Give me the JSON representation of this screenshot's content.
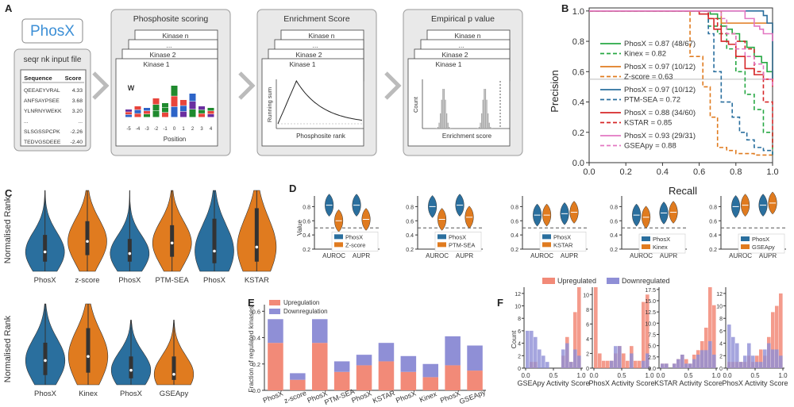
{
  "panel_labels": {
    "a": "A",
    "b": "B",
    "c": "C",
    "d": "D",
    "e": "E",
    "f": "F"
  },
  "colors": {
    "blue": "#2a6f9e",
    "orange": "#e07b1f",
    "green": "#27a844",
    "red": "#d62728",
    "pink": "#e377c2",
    "salmon": "#f28a78",
    "lavender": "#8f8fd6",
    "gray": "#777777"
  },
  "panel_a": {
    "logo": "PhosX",
    "input_title": "seqr nk input file",
    "table_headers": [
      "Sequence",
      "Score"
    ],
    "table_rows": [
      [
        "QEEAEYVRAL",
        "4.33"
      ],
      [
        "ANFSAYPSEE",
        "3.68"
      ],
      [
        "YLNRNYWEKK",
        "3.20"
      ],
      [
        "...",
        "..."
      ],
      [
        "SLSGSSPCPK",
        "-2.26"
      ],
      [
        "TEDVGSDEEE",
        "-2.40"
      ]
    ],
    "steps": [
      {
        "title": "Phosphosite scoring",
        "cards": [
          "Kinase n",
          "...",
          "Kinase 2",
          "Kinase 1"
        ],
        "xlabel": "Position",
        "ticks": [
          "-5",
          "-4",
          "-3",
          "-2",
          "-1",
          "0",
          "1",
          "2",
          "3",
          "4"
        ]
      },
      {
        "title": "Enrichment Score",
        "cards": [
          "Kinase n",
          "...",
          "Kinase 2",
          "Kinase 1"
        ],
        "xlabel": "Phosphosite rank",
        "ylabel": "Running sum"
      },
      {
        "title": "Empirical p value",
        "cards": [
          "Kinase n",
          "...",
          "Kinase 2",
          "Kinase 1"
        ],
        "xlabel": "Enrichment score",
        "ylabel": "Count"
      }
    ]
  },
  "chart_data": [
    {
      "id": "B",
      "type": "line",
      "xlabel": "Recall",
      "ylabel": "Precision",
      "xlim": [
        0,
        1
      ],
      "ylim": [
        0,
        1.02
      ],
      "xticks": [
        "0.0",
        "0.2",
        "0.4",
        "0.6",
        "0.8",
        "1.0"
      ],
      "yticks": [
        "0.0",
        "0.2",
        "0.4",
        "0.6",
        "0.8",
        "1.0"
      ],
      "series": [
        {
          "name": "PhosX = 0.87 (48/67)",
          "color": "green",
          "dash": false,
          "x": [
            0,
            0.6,
            0.66,
            0.7,
            0.72,
            0.75,
            0.78,
            0.82,
            0.86,
            0.9,
            0.94,
            0.97,
            1.0
          ],
          "y": [
            1,
            1,
            0.98,
            0.95,
            0.9,
            0.88,
            0.85,
            0.8,
            0.76,
            0.7,
            0.66,
            0.6,
            0.55
          ]
        },
        {
          "name": "Kinex = 0.82",
          "color": "green",
          "dash": true,
          "x": [
            0,
            0.6,
            0.65,
            0.7,
            0.75,
            0.8,
            0.85,
            0.9,
            0.95,
            1.0
          ],
          "y": [
            1,
            1,
            0.9,
            0.85,
            0.75,
            0.6,
            0.45,
            0.35,
            0.2,
            0.05
          ]
        },
        {
          "name": "PhosX = 0.97 (10/12)",
          "color": "orange",
          "dash": false,
          "x": [
            0,
            0.7,
            0.72,
            1.0,
            1.0
          ],
          "y": [
            1,
            1,
            0.92,
            0.92,
            0.55
          ]
        },
        {
          "name": "Z-score = 0.63",
          "color": "orange",
          "dash": true,
          "x": [
            0,
            0.5,
            0.55,
            0.62,
            0.66,
            0.7,
            0.75,
            0.8,
            0.9,
            1.0
          ],
          "y": [
            1,
            1,
            0.7,
            0.5,
            0.3,
            0.1,
            0.08,
            0.06,
            0.05,
            0.04
          ]
        },
        {
          "name": "PhosX = 0.97 (10/12)",
          "color": "blue",
          "dash": false,
          "x": [
            0,
            0.9,
            0.95,
            0.97,
            1.0,
            1.0
          ],
          "y": [
            1,
            1,
            0.97,
            0.92,
            0.9,
            0.55
          ]
        },
        {
          "name": "PTM-SEA = 0.72",
          "color": "blue",
          "dash": true,
          "x": [
            0,
            0.6,
            0.65,
            0.68,
            0.72,
            0.78,
            0.82,
            0.86,
            0.9,
            0.95,
            1.0
          ],
          "y": [
            1,
            1,
            0.85,
            0.6,
            0.4,
            0.3,
            0.2,
            0.15,
            0.1,
            0.08,
            0.05
          ]
        },
        {
          "name": "PhosX = 0.88 (34/60)",
          "color": "red",
          "dash": false,
          "x": [
            0,
            0.5,
            0.6,
            0.65,
            0.68,
            0.72,
            0.76,
            0.8,
            0.85,
            0.9,
            0.95,
            1.0
          ],
          "y": [
            1,
            1,
            0.98,
            0.95,
            0.88,
            0.8,
            0.78,
            0.7,
            0.62,
            0.58,
            0.55,
            0.5
          ]
        },
        {
          "name": "KSTAR = 0.85",
          "color": "red",
          "dash": true,
          "x": [
            0,
            0.6,
            0.65,
            0.7,
            0.72,
            0.8,
            0.85,
            0.9,
            0.95,
            1.0
          ],
          "y": [
            1,
            1,
            0.95,
            0.9,
            0.85,
            0.8,
            0.75,
            0.6,
            0.4,
            0.1
          ]
        },
        {
          "name": "PhosX = 0.93 (29/31)",
          "color": "pink",
          "dash": false,
          "x": [
            0,
            0.8,
            0.85,
            0.9,
            0.93,
            0.95,
            1.0
          ],
          "y": [
            1,
            1,
            0.95,
            0.9,
            0.88,
            0.85,
            0.8
          ]
        },
        {
          "name": "GSEApy = 0.88",
          "color": "pink",
          "dash": true,
          "x": [
            0,
            0.7,
            0.72,
            0.75,
            0.8,
            0.85,
            0.9,
            0.95,
            1.0
          ],
          "y": [
            1,
            1,
            0.95,
            0.85,
            0.75,
            0.7,
            0.65,
            0.55,
            0.5
          ]
        }
      ],
      "hline": 0.55
    },
    {
      "id": "C",
      "type": "violin",
      "ylabel": "Normalised Rank",
      "rows": [
        {
          "categories": [
            "PhosX",
            "z-score",
            "PhosX",
            "PTM-SEA",
            "PhosX",
            "KSTAR"
          ],
          "colors": [
            "blue",
            "orange",
            "blue",
            "orange",
            "blue",
            "orange"
          ],
          "medians": [
            0.24,
            0.37,
            0.22,
            0.35,
            0.25,
            0.3
          ],
          "q1": [
            0.12,
            0.2,
            0.12,
            0.18,
            0.1,
            0.12
          ],
          "q3": [
            0.45,
            0.62,
            0.4,
            0.57,
            0.65,
            0.78
          ],
          "max": [
            1,
            1,
            1,
            1,
            1,
            1
          ],
          "min": [
            0,
            0,
            0,
            0,
            0,
            0
          ]
        },
        {
          "categories": [
            "PhosX",
            "Kinex",
            "PhosX",
            "GSEApy"
          ],
          "colors": [
            "blue",
            "orange",
            "blue",
            "orange"
          ],
          "medians": [
            0.3,
            0.35,
            0.18,
            0.13
          ],
          "q1": [
            0.12,
            0.15,
            0.08,
            0.06
          ],
          "q3": [
            0.52,
            0.7,
            0.35,
            0.35
          ],
          "max": [
            1,
            1,
            0.8,
            0.8
          ],
          "min": [
            0,
            0,
            0,
            0
          ]
        }
      ]
    },
    {
      "id": "D",
      "type": "violin",
      "ylabel": "Value",
      "yticks": [
        "0.2",
        "0.4",
        "0.6",
        "0.8"
      ],
      "categories": [
        "AUROC",
        "AUPR"
      ],
      "subplots": [
        {
          "legend": [
            "PhosX",
            "Z-score"
          ],
          "values": [
            [
              0.82,
              0.6
            ],
            [
              0.82,
              0.62
            ]
          ]
        },
        {
          "legend": [
            "PhosX",
            "PTM-SEA"
          ],
          "values": [
            [
              0.8,
              0.62
            ],
            [
              0.82,
              0.65
            ]
          ]
        },
        {
          "legend": [
            "PhosX",
            "KSTAR"
          ],
          "values": [
            [
              0.68,
              0.68
            ],
            [
              0.7,
              0.72
            ]
          ]
        },
        {
          "legend": [
            "PhosX",
            "Kinex"
          ],
          "values": [
            [
              0.68,
              0.65
            ],
            [
              0.71,
              0.72
            ]
          ]
        },
        {
          "legend": [
            "PhosX",
            "GSEApy"
          ],
          "values": [
            [
              0.8,
              0.82
            ],
            [
              0.82,
              0.85
            ]
          ]
        }
      ],
      "baseline": 0.5
    },
    {
      "id": "E",
      "type": "bar",
      "ylabel": "Fraction of regulated kinases",
      "yticks": [
        "0.0",
        "0.2",
        "0.4",
        "0.6"
      ],
      "ylim": [
        0,
        0.65
      ],
      "categories": [
        "PhosX",
        "z-score",
        "PhosX",
        "PTM-SEA",
        "PhosX",
        "KSTAR",
        "PhosX",
        "Kinex",
        "PhosX",
        "GSEApy"
      ],
      "series": [
        {
          "name": "Upregulation",
          "color": "salmon",
          "values": [
            0.36,
            0.08,
            0.36,
            0.14,
            0.19,
            0.22,
            0.14,
            0.1,
            0.19,
            0.15
          ]
        },
        {
          "name": "Downregulation",
          "color": "lavender",
          "values": [
            0.18,
            0.05,
            0.18,
            0.08,
            0.08,
            0.14,
            0.12,
            0.1,
            0.22,
            0.19
          ]
        }
      ]
    },
    {
      "id": "F",
      "type": "histogram",
      "ylabel": "Count",
      "legend": [
        "Upregulated",
        "Downregulated"
      ],
      "subplots": [
        {
          "xlabel": "GSEApy Activity Score",
          "yticks": [
            "0",
            "2",
            "4",
            "6",
            "8",
            "10",
            "12"
          ],
          "ymax": 13,
          "up": [
            0,
            1,
            1,
            0,
            0,
            0,
            0,
            0,
            0,
            2,
            5,
            1,
            9,
            13
          ],
          "down": [
            6,
            6,
            5,
            3,
            2,
            1,
            0,
            0,
            0,
            3,
            4,
            1,
            3,
            2
          ]
        },
        {
          "xlabel": "PhosX Activity Score",
          "yticks": [
            "0",
            "2",
            "4",
            "6",
            "8",
            "10"
          ],
          "ymax": 11,
          "up": [
            11,
            2,
            1,
            1,
            1,
            2,
            3,
            2,
            1,
            3,
            1,
            1,
            9,
            10
          ],
          "down": [
            0,
            0,
            0,
            0,
            1,
            3,
            3,
            0,
            0,
            2,
            0,
            0,
            1,
            2
          ]
        },
        {
          "xlabel": "KSTAR Activity Score",
          "yticks": [
            "0.0",
            "2.5",
            "5.0",
            "7.5",
            "10.0",
            "12.5",
            "15.0",
            "17.5"
          ],
          "ymax": 18,
          "up": [
            1,
            1,
            0,
            1,
            2,
            3,
            2,
            1,
            3,
            4,
            6,
            9,
            18,
            14
          ],
          "down": [
            1,
            1,
            0,
            1,
            2,
            3,
            1,
            1,
            2,
            3,
            4,
            4,
            6,
            3
          ]
        },
        {
          "xlabel": "PhosX Activity Score",
          "yticks": [
            "0",
            "2",
            "4",
            "6",
            "8",
            "10",
            "12"
          ],
          "ymax": 13,
          "up": [
            1,
            1,
            1,
            1,
            1,
            2,
            1,
            2,
            3,
            2,
            5,
            9,
            10,
            12
          ],
          "down": [
            7,
            5,
            4,
            1,
            2,
            4,
            2,
            1,
            1,
            3,
            4,
            3,
            3,
            2
          ]
        }
      ]
    }
  ]
}
